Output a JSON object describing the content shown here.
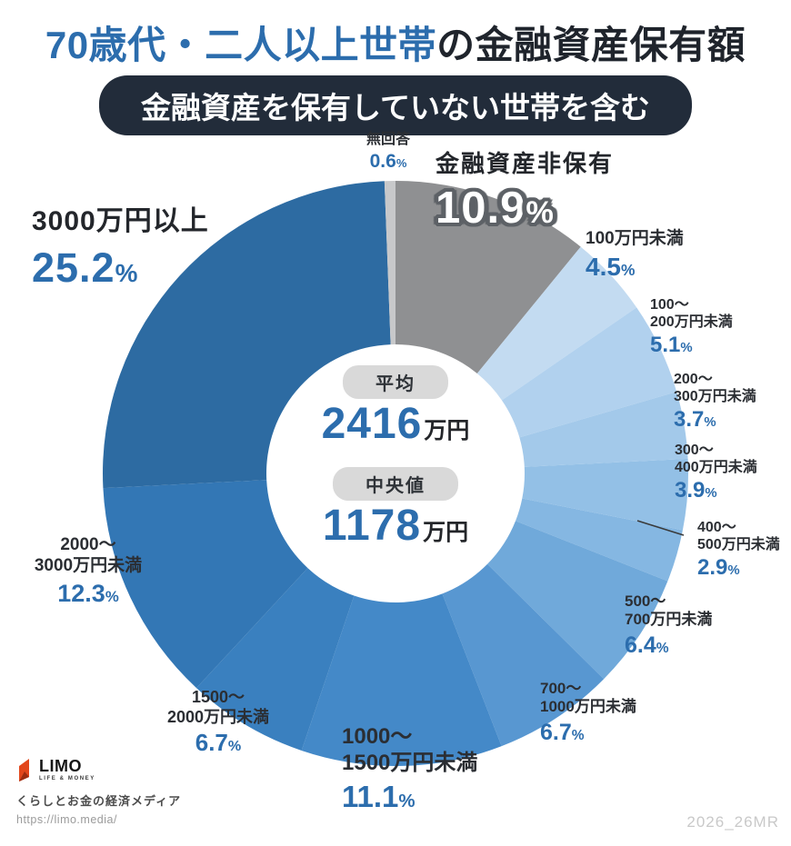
{
  "header": {
    "title_highlight": "70歳代・二人以上世帯",
    "title_rest": "の金融資産保有額",
    "subtitle": "金融資産を保有していない世帯を含む"
  },
  "chart_data": {
    "type": "pie",
    "subtype": "donut",
    "unit": "%",
    "direction": "clockwise",
    "start_angle_deg": 0,
    "segments": [
      {
        "label": "金融資産非保有",
        "lines": [
          "金融資産非保有"
        ],
        "value": 10.9,
        "color": "#8f9092"
      },
      {
        "label": "100万円未満",
        "lines": [
          "100万円未満"
        ],
        "value": 4.5,
        "color": "#c3dbf1"
      },
      {
        "label": "100〜200万円未満",
        "lines": [
          "100〜",
          "200万円未満"
        ],
        "value": 5.1,
        "color": "#b1d1ee"
      },
      {
        "label": "200〜300万円未満",
        "lines": [
          "200〜",
          "300万円未満"
        ],
        "value": 3.7,
        "color": "#a3c9ea"
      },
      {
        "label": "300〜400万円未満",
        "lines": [
          "300〜",
          "400万円未満"
        ],
        "value": 3.9,
        "color": "#93c0e6"
      },
      {
        "label": "400〜500万円未満",
        "lines": [
          "400〜",
          "500万円未満"
        ],
        "value": 2.9,
        "color": "#85b7e2"
      },
      {
        "label": "500〜700万円未満",
        "lines": [
          "500〜",
          "700万円未満"
        ],
        "value": 6.4,
        "color": "#70a9da"
      },
      {
        "label": "700〜1000万円未満",
        "lines": [
          "700〜",
          "1000万円未満"
        ],
        "value": 6.7,
        "color": "#5897d1"
      },
      {
        "label": "1000〜1500万円未満",
        "lines": [
          "1000〜",
          "1500万円未満"
        ],
        "value": 11.1,
        "color": "#4489c8"
      },
      {
        "label": "1500〜2000万円未満",
        "lines": [
          "1500〜",
          "2000万円未満"
        ],
        "value": 6.7,
        "color": "#3a80bf"
      },
      {
        "label": "2000〜3000万円未満",
        "lines": [
          "2000〜",
          "3000万円未満"
        ],
        "value": 12.3,
        "color": "#3377b5"
      },
      {
        "label": "3000万円以上",
        "lines": [
          "3000万円以上"
        ],
        "value": 25.2,
        "color": "#2d6ba2"
      },
      {
        "label": "無回答",
        "lines": [
          "無回答"
        ],
        "value": 0.6,
        "color": "#c7c8ca"
      }
    ],
    "center": {
      "average_label": "平均",
      "average_value": "2416",
      "average_unit": "万円",
      "median_label": "中央値",
      "median_value": "1178",
      "median_unit": "万円"
    }
  },
  "colors": {
    "accent_blue": "#2c6dad",
    "title_dark": "#1f242c",
    "subtitle_bg": "#222c3a",
    "value_blue": "#2c6dad",
    "center_pill_bg": "#d9d9d9",
    "outline_gray": "#5d6166",
    "watermark_gray": "#c9c9c9"
  },
  "footer": {
    "brand": "LIMO",
    "brand_sub": "LIFE & MONEY",
    "tagline": "くらしとお金の経済メディア",
    "url": "https://limo.media/"
  },
  "watermark": "2026_26MR"
}
